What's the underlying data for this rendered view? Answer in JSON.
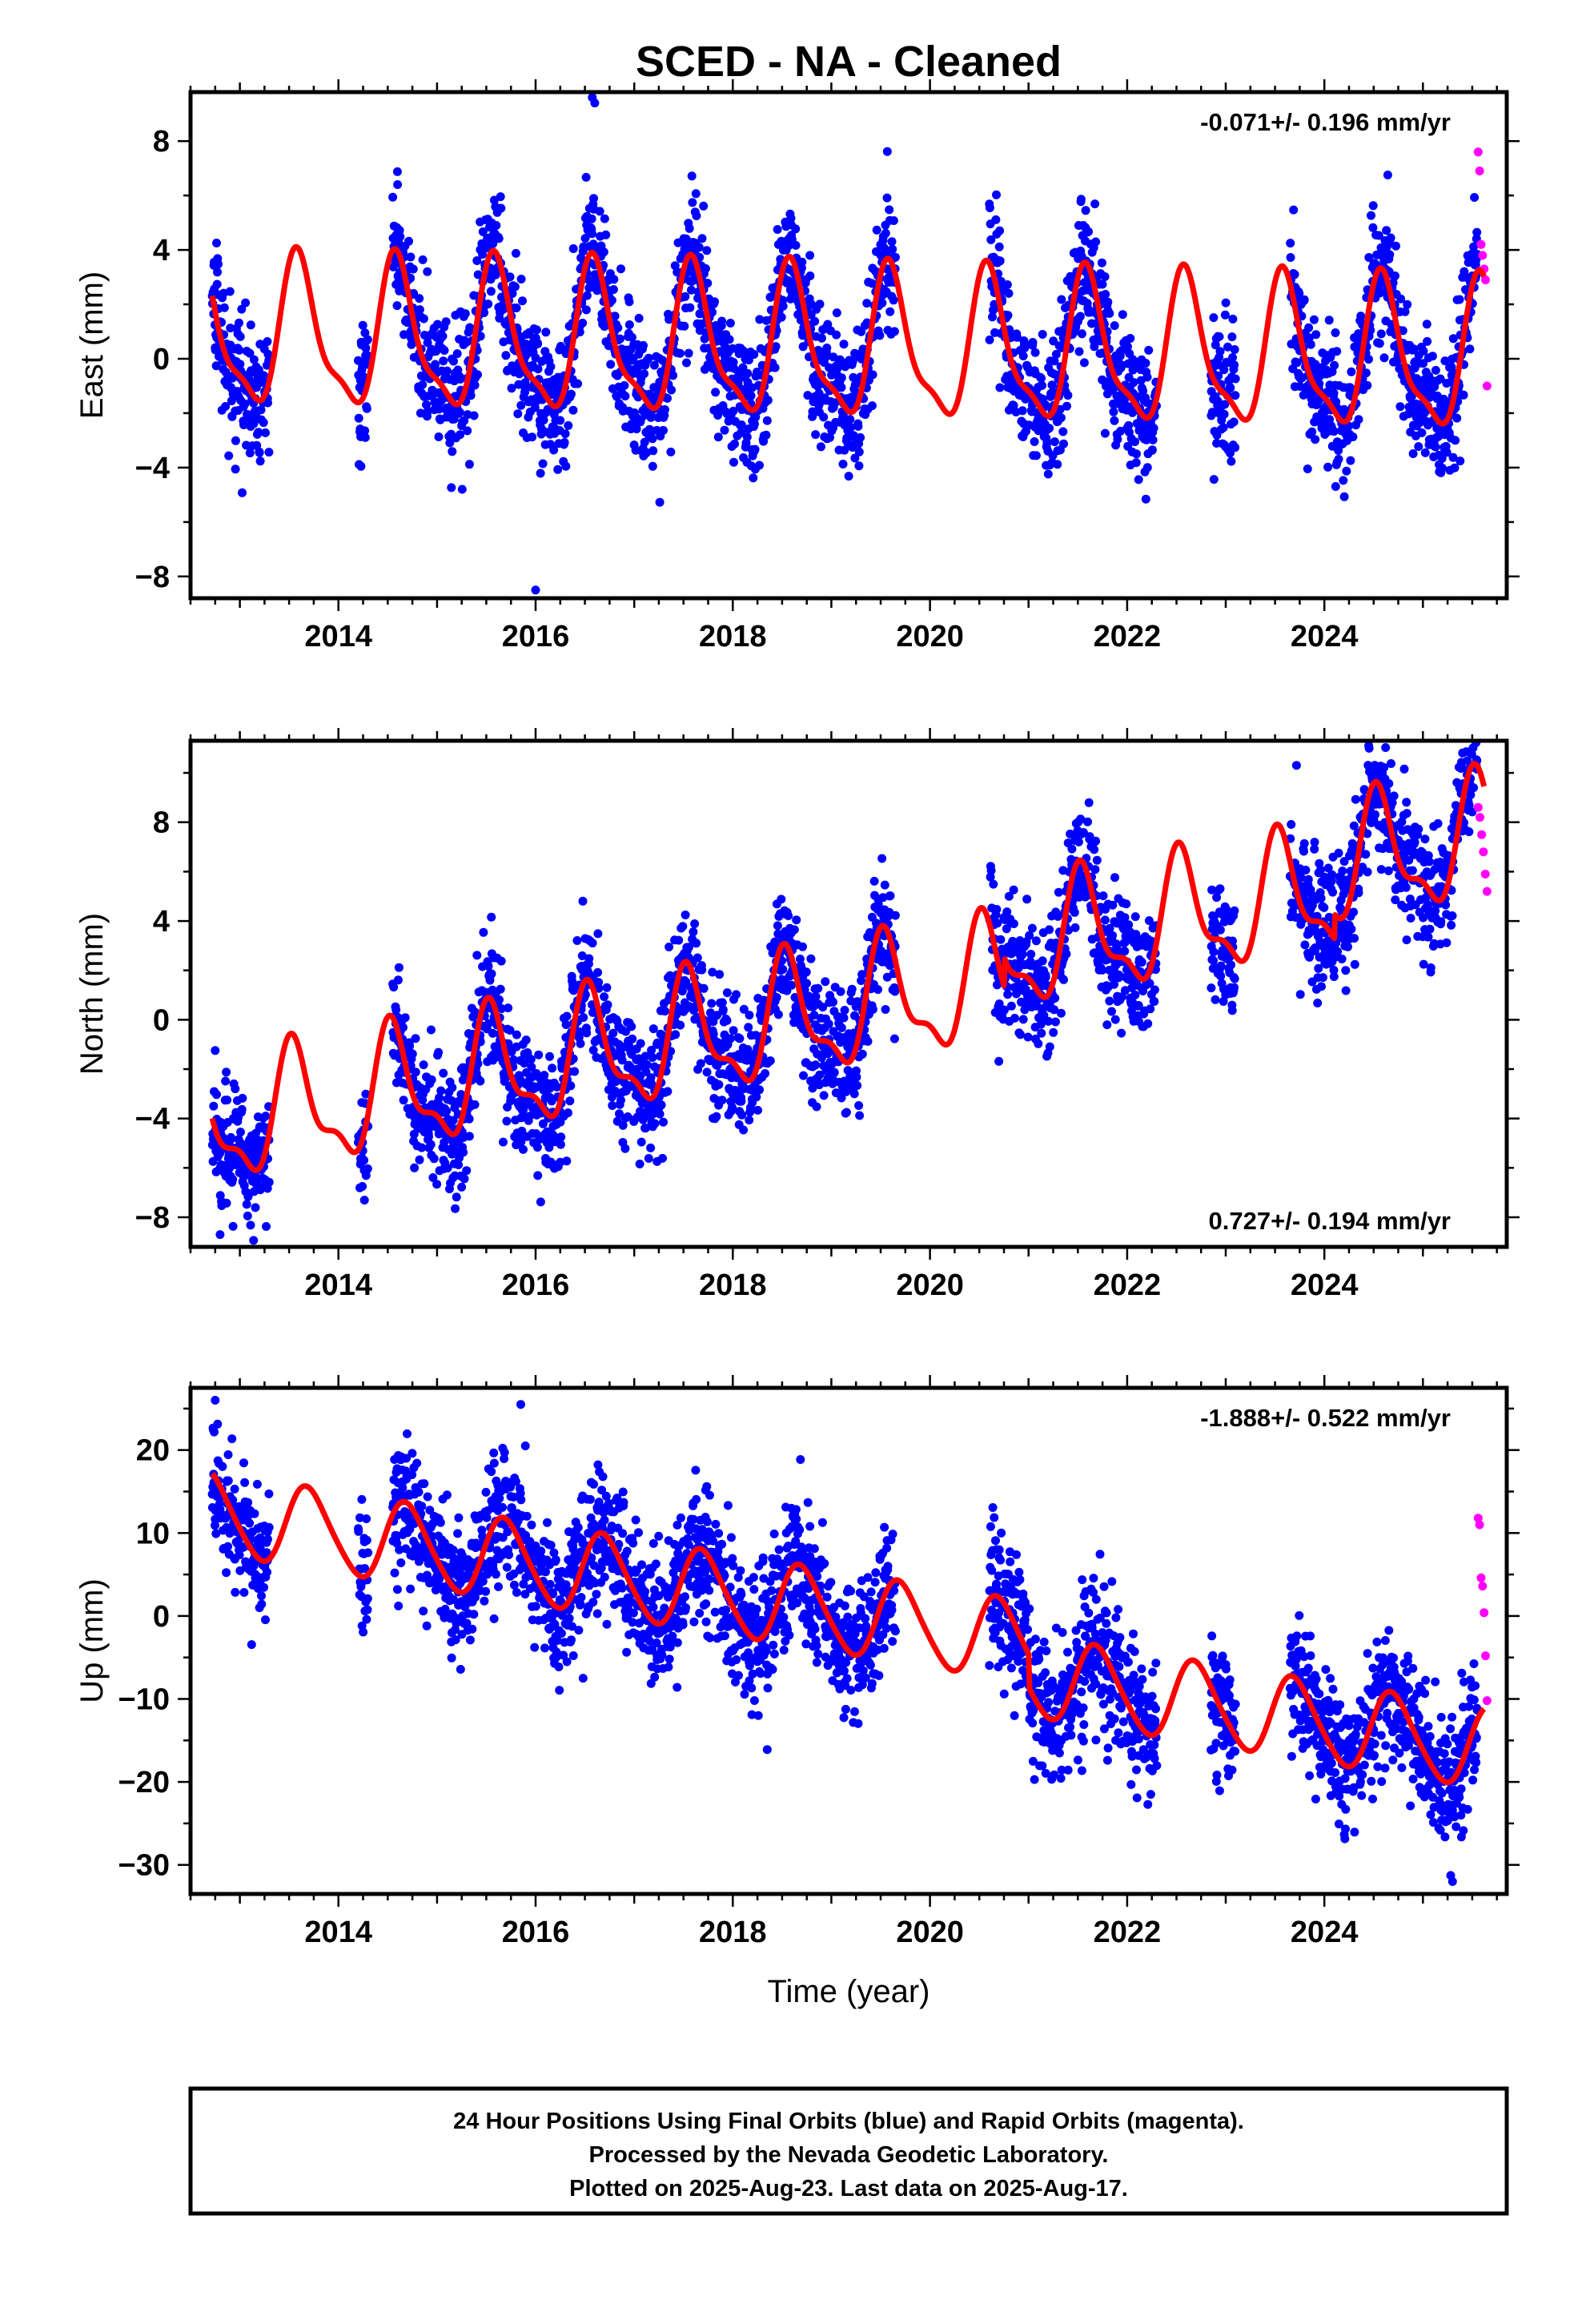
{
  "title": "SCED  - NA - Cleaned",
  "footer": {
    "line1": "24 Hour Positions Using Final Orbits (blue) and Rapid Orbits (magenta).",
    "line2": "Processed by the Nevada Geodetic Laboratory.",
    "line3": "Plotted on 2025-Aug-23. Last data on 2025-Aug-17."
  },
  "colors": {
    "final_orbits": "#0000ff",
    "rapid_orbits": "#ff00ff",
    "model": "#ff0000"
  },
  "chart_data": [
    {
      "type": "scatter",
      "ylabel": "East (mm)",
      "rate_label": "-0.071+/- 0.196 mm/yr",
      "rate_position": "top-right",
      "xlim": [
        2012.5,
        2025.85
      ],
      "ylim": [
        -8.8,
        9.8
      ],
      "yticks": [
        -8,
        -4,
        0,
        4,
        8
      ],
      "ytick_labels": [
        "−8",
        "−4",
        "0",
        "4",
        "8"
      ],
      "xticks": [
        2014,
        2016,
        2018,
        2020,
        2022,
        2024
      ],
      "xtick_labels": [
        "2014",
        "2016",
        "2018",
        "2020",
        "2022",
        "2024"
      ],
      "model": {
        "offset": 0.4,
        "trend": -0.071,
        "t0": 2019,
        "annual_amp": 2.6,
        "annual_peak": 2016.6,
        "semiannual_amp": 0.8,
        "semiannual_peak": 2016.55
      },
      "noise_sd": 1.2,
      "data_gaps": [
        [
          2013.3,
          2014.2
        ],
        [
          2014.3,
          2014.55
        ],
        [
          2019.65,
          2020.6
        ],
        [
          2022.3,
          2022.85
        ],
        [
          2023.1,
          2023.65
        ]
      ],
      "rapid": {
        "x_range": [
          2025.56,
          2025.65
        ],
        "values": [
          7.6,
          6.9,
          4.2,
          3.8,
          3.3,
          2.9,
          -1.0
        ]
      },
      "sample_extremes": [
        {
          "x": 2016.6,
          "y": 9.4
        },
        {
          "x": 2016.0,
          "y": -8.5
        },
        {
          "x": 2014.6,
          "y": 6.4
        }
      ]
    },
    {
      "type": "scatter",
      "ylabel": "North (mm)",
      "rate_label": "0.727+/- 0.194 mm/yr",
      "rate_position": "bottom-right",
      "xlim": [
        2012.5,
        2025.85
      ],
      "ylim": [
        -9.2,
        11.3
      ],
      "yticks": [
        -8,
        -4,
        0,
        4,
        8
      ],
      "ytick_labels": [
        "−8",
        "−4",
        "0",
        "4",
        "8"
      ],
      "xticks": [
        2014,
        2016,
        2018,
        2020,
        2022,
        2024
      ],
      "xtick_labels": [
        "2014",
        "2016",
        "2018",
        "2020",
        "2022",
        "2024"
      ],
      "model": {
        "offset": 0.3,
        "trend": 0.727,
        "t0": 2019,
        "annual_amp": 2.3,
        "annual_peak": 2016.55,
        "semiannual_amp": 0.9,
        "semiannual_peak": 2016.5,
        "steps": [
          {
            "x": 2020.75,
            "dy": 1.2
          },
          {
            "x": 2024.1,
            "dy": 1.0
          }
        ]
      },
      "noise_sd": 1.25,
      "data_gaps": [
        [
          2013.3,
          2014.2
        ],
        [
          2014.3,
          2014.55
        ],
        [
          2019.65,
          2020.6
        ],
        [
          2022.3,
          2022.85
        ],
        [
          2023.1,
          2023.65
        ]
      ],
      "rapid": {
        "x_range": [
          2025.56,
          2025.65
        ],
        "values": [
          8.6,
          8.2,
          7.5,
          6.8,
          5.9,
          5.2
        ]
      },
      "sample_extremes": [
        {
          "x": 2024.45,
          "y": 11.1
        },
        {
          "x": 2012.8,
          "y": -8.7
        }
      ]
    },
    {
      "type": "scatter",
      "ylabel": "Up (mm)",
      "xlabel": "Time (year)",
      "rate_label": "-1.888+/- 0.522 mm/yr",
      "rate_position": "top-right",
      "xlim": [
        2012.5,
        2025.85
      ],
      "ylim": [
        -33.5,
        27.5
      ],
      "yticks": [
        -30,
        -20,
        -10,
        0,
        10,
        20
      ],
      "ytick_labels": [
        "−30",
        "−20",
        "−10",
        "0",
        "10",
        "20"
      ],
      "xticks": [
        2014,
        2016,
        2018,
        2020,
        2022,
        2024
      ],
      "xtick_labels": [
        "2014",
        "2016",
        "2018",
        "2020",
        "2022",
        "2024"
      ],
      "model": {
        "offset": 0.5,
        "trend": -1.888,
        "t0": 2019,
        "annual_amp": 4.8,
        "annual_peak": 2016.7,
        "semiannual_amp": 0.6,
        "semiannual_peak": 2016.6,
        "steps": [
          {
            "x": 2021.0,
            "dy": -4.0
          }
        ]
      },
      "noise_sd": 4.0,
      "data_gaps": [
        [
          2013.3,
          2014.2
        ],
        [
          2014.3,
          2014.55
        ],
        [
          2019.65,
          2020.6
        ],
        [
          2022.3,
          2022.85
        ],
        [
          2023.1,
          2023.65
        ]
      ],
      "rapid": {
        "x_range": [
          2025.56,
          2025.65
        ],
        "values": [
          11.8,
          11.0,
          4.6,
          3.6,
          0.4,
          -4.8,
          -10.2
        ]
      },
      "sample_extremes": [
        {
          "x": 2012.75,
          "y": 26.0
        },
        {
          "x": 2025.3,
          "y": -32.0
        },
        {
          "x": 2015.85,
          "y": 25.5
        }
      ]
    }
  ]
}
